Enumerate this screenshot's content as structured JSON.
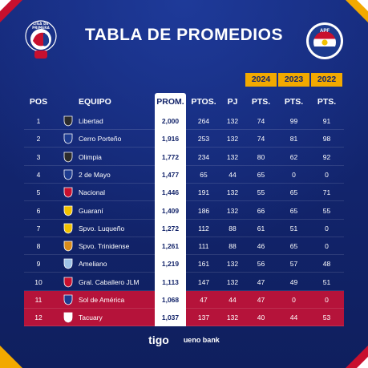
{
  "title": "TABLA DE PROMEDIOS",
  "logos": {
    "left_ring_text": "LIGA DE PRIMERA",
    "right_badge_text": "APF"
  },
  "years": [
    "2024",
    "2023",
    "2022"
  ],
  "headers": {
    "pos": "POS",
    "team": "EQUIPO",
    "prom": "PROM.",
    "ptos": "PTOS.",
    "pj": "PJ",
    "pts2024": "PTS.",
    "pts2023": "PTS.",
    "pts2022": "PTS."
  },
  "rows": [
    {
      "pos": "1",
      "team": "Libertad",
      "prom": "2,000",
      "ptos": "264",
      "pj": "132",
      "p24": "74",
      "p23": "99",
      "p22": "91",
      "crest": "#2b2b2b",
      "relegated": false
    },
    {
      "pos": "2",
      "team": "Cerro Porteño",
      "prom": "1,916",
      "ptos": "253",
      "pj": "132",
      "p24": "74",
      "p23": "81",
      "p22": "98",
      "crest": "#1d3b8f",
      "relegated": false
    },
    {
      "pos": "3",
      "team": "Olimpia",
      "prom": "1,772",
      "ptos": "234",
      "pj": "132",
      "p24": "80",
      "p23": "62",
      "p22": "92",
      "crest": "#2b2b2b",
      "relegated": false
    },
    {
      "pos": "4",
      "team": "2 de Mayo",
      "prom": "1,477",
      "ptos": "65",
      "pj": "44",
      "p24": "65",
      "p23": "0",
      "p22": "0",
      "crest": "#1d3b8f",
      "relegated": false
    },
    {
      "pos": "5",
      "team": "Nacional",
      "prom": "1,446",
      "ptos": "191",
      "pj": "132",
      "p24": "55",
      "p23": "65",
      "p22": "71",
      "crest": "#c8102e",
      "relegated": false
    },
    {
      "pos": "6",
      "team": "Guaraní",
      "prom": "1,409",
      "ptos": "186",
      "pj": "132",
      "p24": "66",
      "p23": "65",
      "p22": "55",
      "crest": "#f2c200",
      "relegated": false
    },
    {
      "pos": "7",
      "team": "Spvo. Luqueño",
      "prom": "1,272",
      "ptos": "112",
      "pj": "88",
      "p24": "61",
      "p23": "51",
      "p22": "0",
      "crest": "#f2c200",
      "relegated": false
    },
    {
      "pos": "8",
      "team": "Spvo. Trinidense",
      "prom": "1,261",
      "ptos": "111",
      "pj": "88",
      "p24": "46",
      "p23": "65",
      "p22": "0",
      "crest": "#d98b1a",
      "relegated": false
    },
    {
      "pos": "9",
      "team": "Ameliano",
      "prom": "1,219",
      "ptos": "161",
      "pj": "132",
      "p24": "56",
      "p23": "57",
      "p22": "48",
      "crest": "#9ec3e6",
      "relegated": false
    },
    {
      "pos": "10",
      "team": "Gral. Caballero JLM",
      "prom": "1,113",
      "ptos": "147",
      "pj": "132",
      "p24": "47",
      "p23": "49",
      "p22": "51",
      "crest": "#c8102e",
      "relegated": false
    },
    {
      "pos": "11",
      "team": "Sol de América",
      "prom": "1,068",
      "ptos": "47",
      "pj": "44",
      "p24": "47",
      "p23": "0",
      "p22": "0",
      "crest": "#1d3b8f",
      "relegated": true
    },
    {
      "pos": "12",
      "team": "Tacuary",
      "prom": "1,037",
      "ptos": "137",
      "pj": "132",
      "p24": "40",
      "p23": "44",
      "p22": "53",
      "crest": "#ffffff",
      "relegated": true
    }
  ],
  "sponsors": {
    "left": "tigo",
    "right": "ueno bank"
  },
  "colors": {
    "background": "#13246a",
    "accent": "#f2a900",
    "relegation": "#b5133a"
  }
}
